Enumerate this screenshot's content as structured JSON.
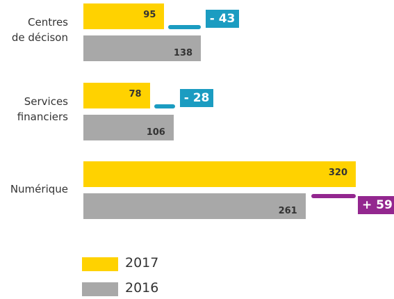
{
  "chart_data": {
    "type": "bar",
    "categories": [
      "Centres\nde décison",
      "Services\nfinanciers",
      "Numérique"
    ],
    "series": [
      {
        "name": "2017",
        "color": "#ffd200",
        "values": [
          95,
          78,
          320
        ]
      },
      {
        "name": "2016",
        "color": "#a8a8a8",
        "values": [
          138,
          106,
          261
        ]
      }
    ],
    "differences": {
      "values": [
        -43,
        -28,
        59
      ],
      "value_labels": [
        "- 43",
        "- 28",
        "+ 59"
      ],
      "colors": {
        "negative": "#1b9cc1",
        "positive": "#93278f"
      }
    }
  }
}
